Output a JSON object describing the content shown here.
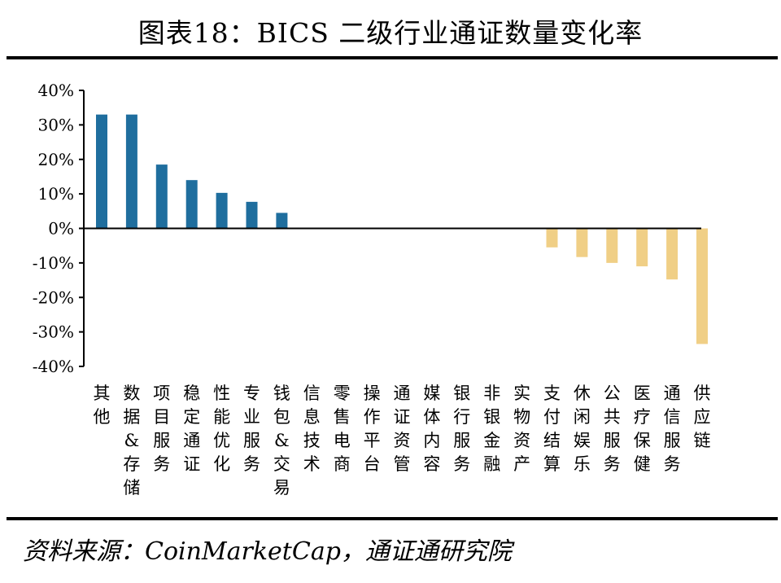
{
  "title": "图表18：BICS 二级行业通证数量变化率",
  "source": "资料来源：CoinMarketCap，通证通研究院",
  "colors": {
    "positive": "#1f6e9e",
    "negative": "#f0cf86",
    "axis": "#000000"
  },
  "chart_data": {
    "type": "bar",
    "title": "图表18：BICS 二级行业通证数量变化率",
    "xlabel": "",
    "ylabel": "",
    "ylim": [
      -40,
      40
    ],
    "yticks": [
      "40%",
      "30%",
      "20%",
      "10%",
      "0%",
      "-10%",
      "-20%",
      "-30%",
      "-40%"
    ],
    "categories": [
      "其他",
      "数据&存储",
      "项目服务",
      "稳定通证",
      "性能优化",
      "专业服务",
      "钱包&交易",
      "信息技术",
      "零售电商",
      "操作平台",
      "通证资管",
      "媒体内容",
      "银行服务",
      "非银金融",
      "实物资产",
      "支付结算",
      "休闲娱乐",
      "公共服务",
      "医疗保健",
      "通信服务",
      "供应链"
    ],
    "values": [
      33,
      33,
      18.5,
      14,
      10.3,
      7.7,
      4.5,
      0,
      0,
      0,
      0,
      0,
      0,
      0,
      0,
      -5.5,
      -8.3,
      -10,
      -11,
      -14.8,
      -33.5
    ],
    "grid": false,
    "legend": "none"
  }
}
